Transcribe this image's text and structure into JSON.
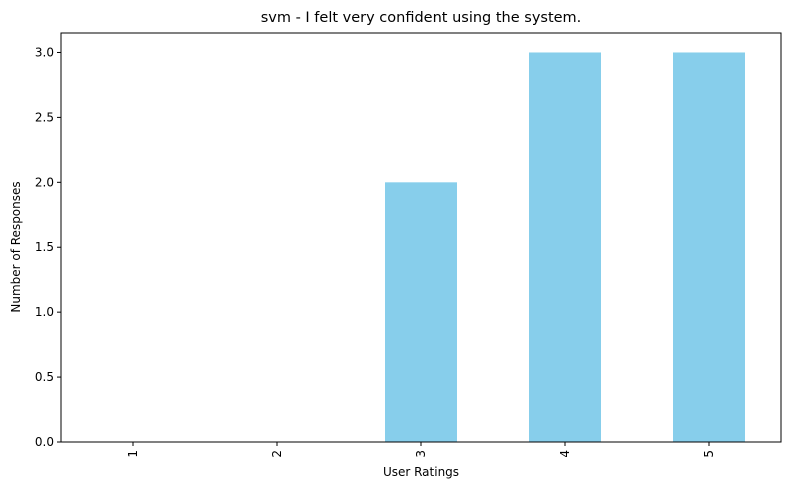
{
  "chart_data": {
    "type": "bar",
    "title": "svm - I felt very confident using the system.",
    "xlabel": "User Ratings",
    "ylabel": "Number of Responses",
    "categories": [
      "1",
      "2",
      "3",
      "4",
      "5"
    ],
    "values": [
      0,
      0,
      2,
      3,
      3
    ],
    "ylim": [
      0,
      3.15
    ],
    "yticks": [
      "0.0",
      "0.5",
      "1.0",
      "1.5",
      "2.0",
      "2.5",
      "3.0"
    ],
    "bar_color": "#87ceeb",
    "grid": false,
    "legend": "none",
    "x_tick_rotation": 90
  }
}
